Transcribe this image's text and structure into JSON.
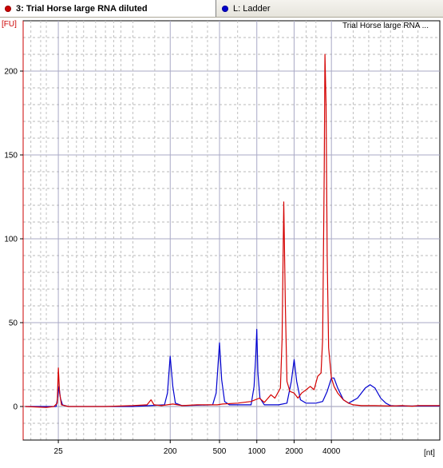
{
  "tabs": [
    {
      "label": "3: Trial Horse large RNA diluted",
      "color": "#cc0000",
      "active": true
    },
    {
      "label": "L: Ladder",
      "color": "#0000cc",
      "active": false
    }
  ],
  "chart_data": {
    "type": "line",
    "title": "",
    "legend": {
      "label": "Trial Horse large RNA ...",
      "placement": "top-right"
    },
    "ylabel": "[FU]",
    "xlabel": "[nt]",
    "x_scale": "log",
    "xlim": [
      13,
      30000
    ],
    "ylim": [
      -20,
      230
    ],
    "y_ticks": [
      0,
      50,
      100,
      150,
      200
    ],
    "x_ticks": [
      {
        "value": 25,
        "label": "25"
      },
      {
        "value": 200,
        "label": "200"
      },
      {
        "value": 500,
        "label": "500"
      },
      {
        "value": 1000,
        "label": "1000"
      },
      {
        "value": 2000,
        "label": "2000"
      },
      {
        "value": 4000,
        "label": "4000"
      }
    ],
    "ladder_positions": [
      25,
      200,
      500,
      1000,
      2000,
      4000
    ],
    "grid": true,
    "series": [
      {
        "name": "Trial Horse large RNA ...",
        "color": "#d40000",
        "points": [
          [
            13.5,
            0
          ],
          [
            20,
            -0.5
          ],
          [
            23,
            0
          ],
          [
            24.5,
            2
          ],
          [
            25,
            23
          ],
          [
            25.6,
            8
          ],
          [
            26.5,
            1
          ],
          [
            30,
            0
          ],
          [
            60,
            0
          ],
          [
            100,
            0.5
          ],
          [
            130,
            1
          ],
          [
            140,
            4
          ],
          [
            148,
            1
          ],
          [
            170,
            0.5
          ],
          [
            210,
            1.5
          ],
          [
            250,
            0.5
          ],
          [
            330,
            1
          ],
          [
            420,
            1
          ],
          [
            480,
            1
          ],
          [
            530,
            1.5
          ],
          [
            700,
            2
          ],
          [
            900,
            3
          ],
          [
            1050,
            5
          ],
          [
            1150,
            2.5
          ],
          [
            1200,
            4
          ],
          [
            1300,
            7
          ],
          [
            1400,
            5
          ],
          [
            1500,
            9
          ],
          [
            1550,
            11
          ],
          [
            1600,
            40
          ],
          [
            1650,
            122
          ],
          [
            1700,
            60
          ],
          [
            1750,
            15
          ],
          [
            1850,
            9
          ],
          [
            2000,
            8
          ],
          [
            2150,
            5
          ],
          [
            2300,
            8
          ],
          [
            2500,
            10
          ],
          [
            2700,
            12
          ],
          [
            2900,
            10
          ],
          [
            3100,
            18
          ],
          [
            3300,
            20
          ],
          [
            3400,
            40
          ],
          [
            3500,
            140
          ],
          [
            3550,
            210
          ],
          [
            3620,
            180
          ],
          [
            3700,
            90
          ],
          [
            3800,
            35
          ],
          [
            4000,
            17
          ],
          [
            4200,
            12
          ],
          [
            4500,
            8
          ],
          [
            5000,
            4
          ],
          [
            5500,
            2
          ],
          [
            6000,
            1
          ],
          [
            7000,
            0.5
          ],
          [
            9000,
            0.5
          ],
          [
            12000,
            0.3
          ],
          [
            15000,
            0.5
          ],
          [
            18000,
            0.2
          ],
          [
            20000,
            0.5
          ],
          [
            30000,
            0.5
          ]
        ]
      },
      {
        "name": "Ladder",
        "color": "#0000d0",
        "points": [
          [
            13.5,
            0
          ],
          [
            22,
            0
          ],
          [
            24,
            0
          ],
          [
            24.8,
            6
          ],
          [
            25.3,
            12
          ],
          [
            26,
            5
          ],
          [
            27,
            1
          ],
          [
            30,
            0
          ],
          [
            100,
            0
          ],
          [
            180,
            1
          ],
          [
            190,
            8
          ],
          [
            200,
            30
          ],
          [
            210,
            12
          ],
          [
            220,
            2
          ],
          [
            250,
            0.5
          ],
          [
            440,
            1
          ],
          [
            470,
            8
          ],
          [
            500,
            38
          ],
          [
            520,
            16
          ],
          [
            550,
            3
          ],
          [
            600,
            1
          ],
          [
            900,
            1
          ],
          [
            950,
            12
          ],
          [
            980,
            30
          ],
          [
            1000,
            46
          ],
          [
            1020,
            20
          ],
          [
            1060,
            5
          ],
          [
            1150,
            1
          ],
          [
            1500,
            1
          ],
          [
            1750,
            2
          ],
          [
            1900,
            15
          ],
          [
            2000,
            28
          ],
          [
            2100,
            15
          ],
          [
            2250,
            4
          ],
          [
            2500,
            2
          ],
          [
            3000,
            2
          ],
          [
            3400,
            3
          ],
          [
            3700,
            9
          ],
          [
            4000,
            17
          ],
          [
            4200,
            17
          ],
          [
            4500,
            11
          ],
          [
            5000,
            4
          ],
          [
            5500,
            2
          ],
          [
            6500,
            5
          ],
          [
            7500,
            11
          ],
          [
            8200,
            13
          ],
          [
            9000,
            11
          ],
          [
            10000,
            5
          ],
          [
            11000,
            2
          ],
          [
            12000,
            0.5
          ],
          [
            14000,
            0.3
          ],
          [
            20000,
            0.3
          ],
          [
            30000,
            0.3
          ]
        ]
      }
    ]
  }
}
